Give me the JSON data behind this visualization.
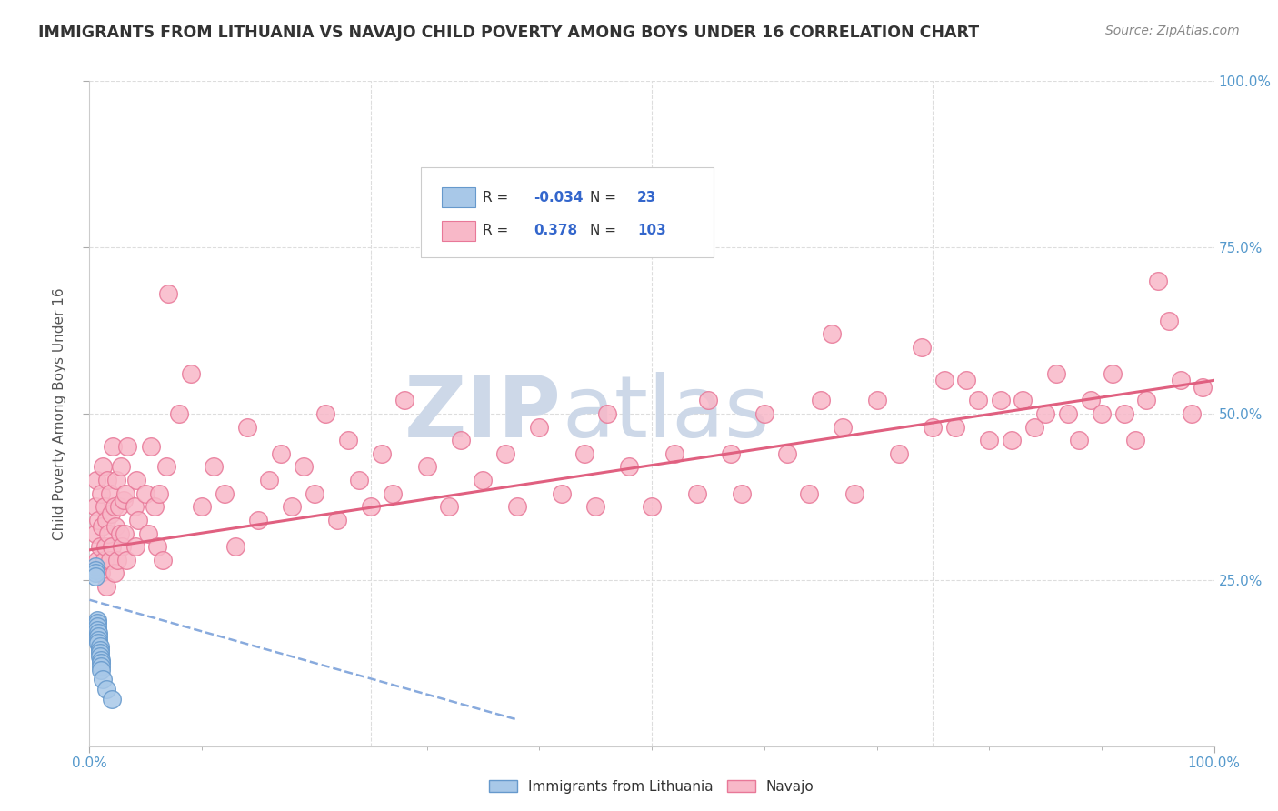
{
  "title": "IMMIGRANTS FROM LITHUANIA VS NAVAJO CHILD POVERTY AMONG BOYS UNDER 16 CORRELATION CHART",
  "source": "Source: ZipAtlas.com",
  "ylabel": "Child Poverty Among Boys Under 16",
  "watermark_zip": "ZIP",
  "watermark_atlas": "atlas",
  "xlim": [
    0,
    1
  ],
  "ylim": [
    0,
    1
  ],
  "background_color": "#ffffff",
  "grid_color": "#dddddd",
  "blue_face_color": "#a8c8e8",
  "blue_edge_color": "#6699cc",
  "pink_face_color": "#f8b8c8",
  "pink_edge_color": "#e87898",
  "pink_line_color": "#e06080",
  "blue_line_color": "#88aadd",
  "title_color": "#333333",
  "source_color": "#888888",
  "watermark_color": "#cdd8e8",
  "tick_color": "#5599cc",
  "ylabel_color": "#555555",
  "blue_points": [
    [
      0.005,
      0.27
    ],
    [
      0.005,
      0.265
    ],
    [
      0.005,
      0.26
    ],
    [
      0.005,
      0.255
    ],
    [
      0.007,
      0.19
    ],
    [
      0.007,
      0.185
    ],
    [
      0.007,
      0.18
    ],
    [
      0.007,
      0.175
    ],
    [
      0.008,
      0.17
    ],
    [
      0.008,
      0.165
    ],
    [
      0.008,
      0.16
    ],
    [
      0.008,
      0.155
    ],
    [
      0.009,
      0.15
    ],
    [
      0.009,
      0.145
    ],
    [
      0.009,
      0.14
    ],
    [
      0.009,
      0.135
    ],
    [
      0.01,
      0.13
    ],
    [
      0.01,
      0.125
    ],
    [
      0.01,
      0.12
    ],
    [
      0.01,
      0.115
    ],
    [
      0.012,
      0.1
    ],
    [
      0.015,
      0.085
    ],
    [
      0.02,
      0.07
    ]
  ],
  "pink_points": [
    [
      0.005,
      0.32
    ],
    [
      0.005,
      0.36
    ],
    [
      0.006,
      0.4
    ],
    [
      0.007,
      0.28
    ],
    [
      0.008,
      0.34
    ],
    [
      0.009,
      0.3
    ],
    [
      0.01,
      0.38
    ],
    [
      0.01,
      0.26
    ],
    [
      0.011,
      0.33
    ],
    [
      0.012,
      0.42
    ],
    [
      0.013,
      0.28
    ],
    [
      0.013,
      0.36
    ],
    [
      0.014,
      0.3
    ],
    [
      0.015,
      0.24
    ],
    [
      0.015,
      0.34
    ],
    [
      0.016,
      0.4
    ],
    [
      0.017,
      0.32
    ],
    [
      0.018,
      0.38
    ],
    [
      0.018,
      0.28
    ],
    [
      0.019,
      0.35
    ],
    [
      0.02,
      0.3
    ],
    [
      0.021,
      0.45
    ],
    [
      0.022,
      0.36
    ],
    [
      0.022,
      0.26
    ],
    [
      0.023,
      0.33
    ],
    [
      0.024,
      0.4
    ],
    [
      0.025,
      0.28
    ],
    [
      0.026,
      0.36
    ],
    [
      0.027,
      0.32
    ],
    [
      0.028,
      0.42
    ],
    [
      0.029,
      0.3
    ],
    [
      0.03,
      0.37
    ],
    [
      0.031,
      0.32
    ],
    [
      0.032,
      0.38
    ],
    [
      0.033,
      0.28
    ],
    [
      0.034,
      0.45
    ],
    [
      0.04,
      0.36
    ],
    [
      0.041,
      0.3
    ],
    [
      0.042,
      0.4
    ],
    [
      0.043,
      0.34
    ],
    [
      0.05,
      0.38
    ],
    [
      0.052,
      0.32
    ],
    [
      0.055,
      0.45
    ],
    [
      0.058,
      0.36
    ],
    [
      0.06,
      0.3
    ],
    [
      0.062,
      0.38
    ],
    [
      0.065,
      0.28
    ],
    [
      0.068,
      0.42
    ],
    [
      0.07,
      0.68
    ],
    [
      0.08,
      0.5
    ],
    [
      0.09,
      0.56
    ],
    [
      0.1,
      0.36
    ],
    [
      0.11,
      0.42
    ],
    [
      0.12,
      0.38
    ],
    [
      0.13,
      0.3
    ],
    [
      0.14,
      0.48
    ],
    [
      0.15,
      0.34
    ],
    [
      0.16,
      0.4
    ],
    [
      0.17,
      0.44
    ],
    [
      0.18,
      0.36
    ],
    [
      0.19,
      0.42
    ],
    [
      0.2,
      0.38
    ],
    [
      0.21,
      0.5
    ],
    [
      0.22,
      0.34
    ],
    [
      0.23,
      0.46
    ],
    [
      0.24,
      0.4
    ],
    [
      0.25,
      0.36
    ],
    [
      0.26,
      0.44
    ],
    [
      0.27,
      0.38
    ],
    [
      0.28,
      0.52
    ],
    [
      0.3,
      0.42
    ],
    [
      0.32,
      0.36
    ],
    [
      0.33,
      0.46
    ],
    [
      0.35,
      0.4
    ],
    [
      0.37,
      0.44
    ],
    [
      0.38,
      0.36
    ],
    [
      0.4,
      0.48
    ],
    [
      0.42,
      0.38
    ],
    [
      0.44,
      0.44
    ],
    [
      0.45,
      0.36
    ],
    [
      0.46,
      0.5
    ],
    [
      0.48,
      0.42
    ],
    [
      0.5,
      0.36
    ],
    [
      0.52,
      0.44
    ],
    [
      0.54,
      0.38
    ],
    [
      0.55,
      0.52
    ],
    [
      0.57,
      0.44
    ],
    [
      0.58,
      0.38
    ],
    [
      0.6,
      0.5
    ],
    [
      0.62,
      0.44
    ],
    [
      0.64,
      0.38
    ],
    [
      0.65,
      0.52
    ],
    [
      0.66,
      0.62
    ],
    [
      0.67,
      0.48
    ],
    [
      0.68,
      0.38
    ],
    [
      0.7,
      0.52
    ],
    [
      0.72,
      0.44
    ],
    [
      0.74,
      0.6
    ],
    [
      0.75,
      0.48
    ],
    [
      0.76,
      0.55
    ],
    [
      0.77,
      0.48
    ],
    [
      0.78,
      0.55
    ],
    [
      0.79,
      0.52
    ],
    [
      0.8,
      0.46
    ],
    [
      0.81,
      0.52
    ],
    [
      0.82,
      0.46
    ],
    [
      0.83,
      0.52
    ],
    [
      0.84,
      0.48
    ],
    [
      0.85,
      0.5
    ],
    [
      0.86,
      0.56
    ],
    [
      0.87,
      0.5
    ],
    [
      0.88,
      0.46
    ],
    [
      0.89,
      0.52
    ],
    [
      0.9,
      0.5
    ],
    [
      0.91,
      0.56
    ],
    [
      0.92,
      0.5
    ],
    [
      0.93,
      0.46
    ],
    [
      0.94,
      0.52
    ],
    [
      0.95,
      0.7
    ],
    [
      0.96,
      0.64
    ],
    [
      0.97,
      0.55
    ],
    [
      0.98,
      0.5
    ],
    [
      0.99,
      0.54
    ]
  ],
  "blue_trend_x": [
    0.0,
    0.38
  ],
  "blue_trend_y": [
    0.22,
    0.04
  ],
  "pink_trend_x": [
    0.0,
    1.0
  ],
  "pink_trend_y": [
    0.295,
    0.55
  ]
}
